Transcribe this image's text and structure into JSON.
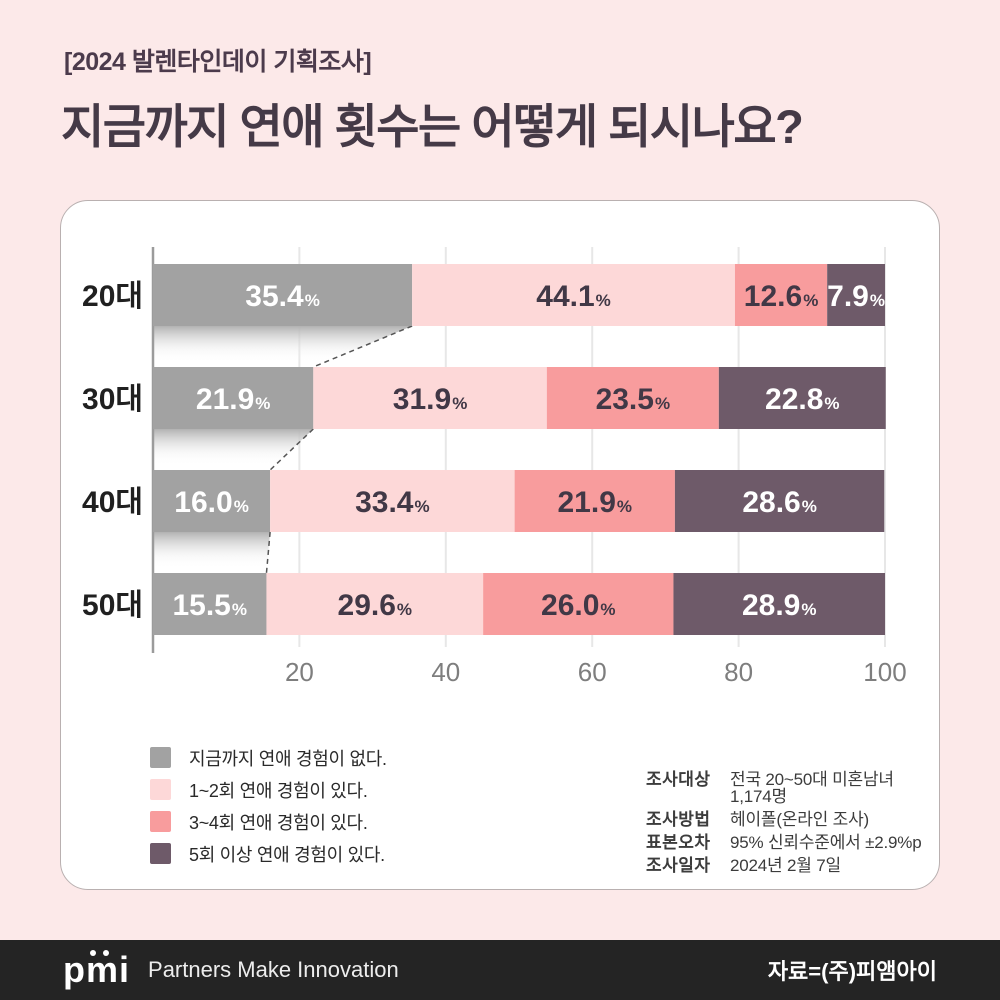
{
  "header": {
    "tag": "[2024 발렌타인데이 기획조사]",
    "title": "지금까지 연애 횟수는 어떻게 되시나요?"
  },
  "chart_data": {
    "type": "bar",
    "subtype": "horizontal-stacked",
    "unit": "%",
    "categories": [
      "20대",
      "30대",
      "40대",
      "50대"
    ],
    "series": [
      {
        "name": "지금까지 연애 경험이 없다.",
        "color": "#a2a2a2",
        "label_color": "#ffffff",
        "values": [
          35.4,
          21.9,
          16.0,
          15.5
        ]
      },
      {
        "name": "1~2회 연애 경험이 있다.",
        "color": "#fdd8d8",
        "label_color": "#413846",
        "values": [
          44.1,
          31.9,
          33.4,
          29.6
        ]
      },
      {
        "name": "3~4회 연애 경험이 있다.",
        "color": "#f89c9d",
        "label_color": "#413846",
        "values": [
          12.6,
          23.5,
          21.9,
          26.0
        ]
      },
      {
        "name": "5회 이상 연애 경험이 있다.",
        "color": "#6e5a69",
        "label_color": "#ffffff",
        "values": [
          7.9,
          22.8,
          28.6,
          28.9
        ]
      }
    ],
    "x_ticks": [
      20,
      40,
      60,
      80,
      100
    ],
    "xlim": [
      0,
      100
    ],
    "grid": true,
    "legend_position": "bottom-left"
  },
  "survey": {
    "rows": [
      {
        "label": "조사대상",
        "value": "전국 20~50대 미혼남녀 1,174명"
      },
      {
        "label": "조사방법",
        "value": "헤이폴(온라인 조사)"
      },
      {
        "label": "표본오차",
        "value": "95% 신뢰수준에서 ±2.9%p"
      },
      {
        "label": "조사일자",
        "value": "2024년 2월 7일"
      }
    ]
  },
  "footer": {
    "logo_text": "pmi",
    "tagline": "Partners Make Innovation",
    "source": "자료=(주)피앰아이"
  },
  "colors": {
    "background": "#fce9e9",
    "card": "#ffffff",
    "footer_bg": "#242424",
    "title": "#453a47",
    "tag": "#4c3b4c",
    "axis": "#9b9b9b",
    "gridline": "#e7e7e7",
    "tick_label": "#7e7e7e",
    "category_label": "#202020"
  }
}
